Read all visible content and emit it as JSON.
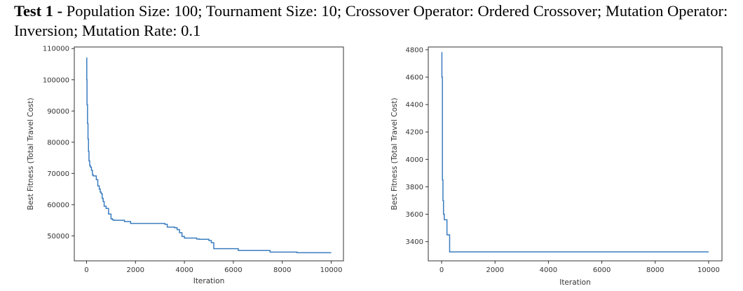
{
  "caption": {
    "test_label": "Test 1 -",
    "text": "Population Size: 100; Tournament Size: 10; Crossover Operator: Ordered Crossover; Mutation Operator: Inversion; Mutation Rate: 0.1"
  },
  "colors": {
    "line": "#3a7dbf",
    "axis": "#333333"
  },
  "chart_data": [
    {
      "type": "line",
      "xlabel": "Iteration",
      "ylabel": "Best Fitness (Total Travel Cost)",
      "xlim": [
        -500,
        10500
      ],
      "ylim": [
        42000,
        110500
      ],
      "xticks": [
        0,
        2000,
        4000,
        6000,
        8000,
        10000
      ],
      "yticks": [
        50000,
        60000,
        70000,
        80000,
        90000,
        100000,
        110000
      ],
      "grid": false,
      "series": [
        {
          "x": [
            0,
            10,
            20,
            40,
            60,
            80,
            100,
            130,
            160,
            200,
            240,
            280,
            320,
            400,
            460,
            520,
            560,
            600,
            640,
            680,
            720,
            800,
            900,
            1000,
            1050,
            1100,
            1500,
            1550,
            1800,
            3200,
            3300,
            3600,
            3700,
            3800,
            3900,
            4000,
            4500,
            4600,
            5000,
            5100,
            5200,
            6000,
            6200,
            7400,
            7500,
            8600,
            10000
          ],
          "y": [
            107000,
            100000,
            92000,
            86000,
            81000,
            77000,
            74000,
            72500,
            72000,
            71000,
            69500,
            69200,
            69200,
            68000,
            66000,
            65000,
            64000,
            63500,
            62000,
            61000,
            59500,
            58800,
            57000,
            55500,
            55200,
            55000,
            55000,
            54600,
            54000,
            53700,
            52800,
            52600,
            52000,
            51000,
            49800,
            49300,
            49000,
            48900,
            48500,
            47800,
            45900,
            45900,
            45300,
            45300,
            44800,
            44600,
            44600
          ]
        }
      ]
    },
    {
      "type": "line",
      "xlabel": "Iteration",
      "ylabel": "Best Fitness (Total Travel Cost)",
      "xlim": [
        -500,
        10500
      ],
      "ylim": [
        3260,
        4820
      ],
      "xticks": [
        0,
        2000,
        4000,
        6000,
        8000,
        10000
      ],
      "yticks": [
        3400,
        3600,
        3800,
        4000,
        4200,
        4400,
        4600,
        4800
      ],
      "grid": false,
      "series": [
        {
          "x": [
            0,
            10,
            30,
            50,
            70,
            100,
            150,
            200,
            260,
            300,
            1000,
            5000,
            10000
          ],
          "y": [
            4780,
            4600,
            3850,
            3700,
            3600,
            3560,
            3560,
            3450,
            3450,
            3325,
            3325,
            3325,
            3325
          ]
        }
      ]
    }
  ]
}
